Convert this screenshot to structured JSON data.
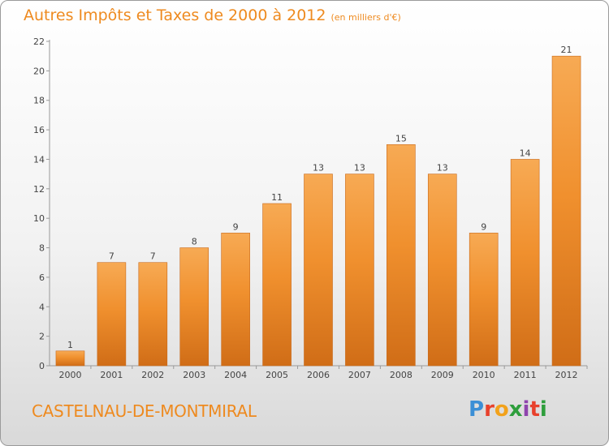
{
  "header": {
    "title": "Autres Impôts et Taxes de 2000 à 2012",
    "unit": "(en milliers d'€)"
  },
  "footer": {
    "commune": "CASTELNAU-DE-MONTMIRAL",
    "logo": "Proxiti",
    "logo_colors": [
      "#3b8fd6",
      "#e8412c",
      "#f2a21b",
      "#2e9e3c",
      "#8e44ad",
      "#e8412c",
      "#2e9e3c"
    ]
  },
  "colors": {
    "bar": "#f0902e",
    "bar_light": "#f7aa54",
    "bar_dark": "#d06d17",
    "text": "#ee8a1f"
  },
  "chart_data": {
    "type": "bar",
    "title": "Autres Impôts et Taxes de 2000 à 2012",
    "subtitle": "(en milliers d'€)",
    "categories": [
      "2000",
      "2001",
      "2002",
      "2003",
      "2004",
      "2005",
      "2006",
      "2007",
      "2008",
      "2009",
      "2010",
      "2011",
      "2012"
    ],
    "values": [
      1,
      7,
      7,
      8,
      9,
      11,
      13,
      13,
      15,
      13,
      9,
      14,
      21
    ],
    "ylim": [
      0,
      22
    ],
    "yticks": [
      0,
      2,
      4,
      6,
      8,
      10,
      12,
      14,
      16,
      18,
      20,
      22
    ],
    "grid": false,
    "data_labels": true
  }
}
